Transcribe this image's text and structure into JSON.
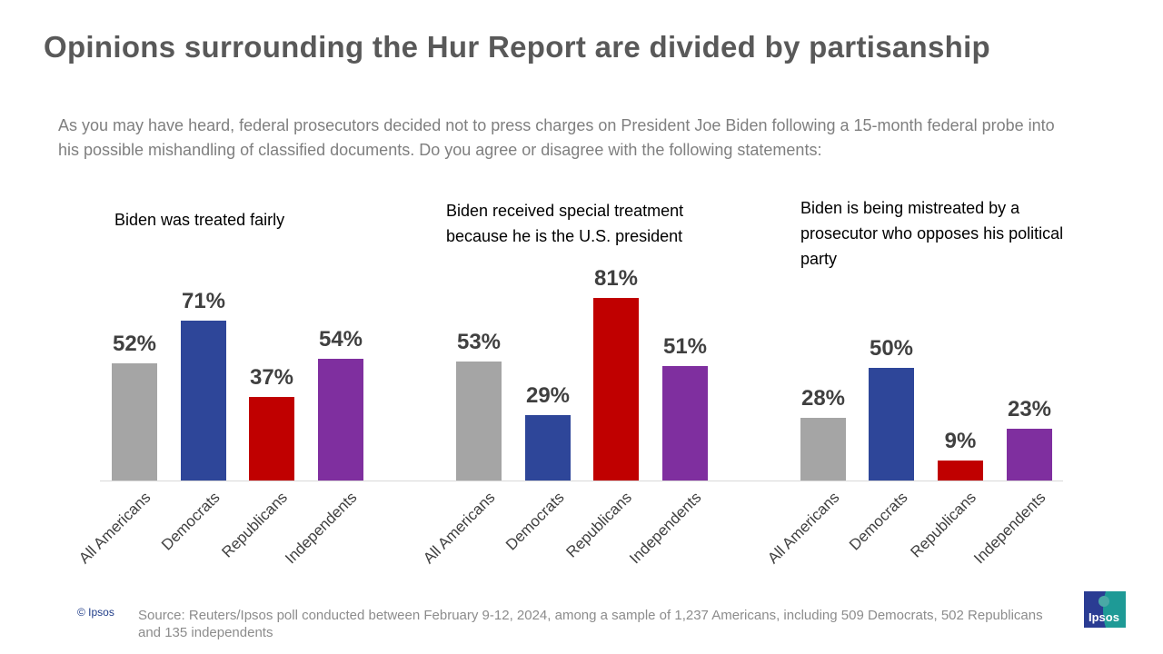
{
  "title": "Opinions surrounding the Hur Report are divided by partisanship",
  "subtitle": "As you may have heard, federal prosecutors decided not to press charges on President Joe Biden following a 15-month federal probe into his possible mishandling of classified documents. Do you agree or disagree with the following statements:",
  "chart_data": [
    {
      "type": "bar",
      "title": "Biden was treated fairly",
      "categories": [
        "All Americans",
        "Democrats",
        "Republicans",
        "Independents"
      ],
      "values": [
        52,
        71,
        37,
        54
      ],
      "value_labels": [
        "52%",
        "71%",
        "37%",
        "54%"
      ],
      "ylim": [
        0,
        100
      ]
    },
    {
      "type": "bar",
      "title": "Biden received special treatment because he is the U.S. president",
      "categories": [
        "All Americans",
        "Democrats",
        "Republicans",
        "Independents"
      ],
      "values": [
        53,
        29,
        81,
        51
      ],
      "value_labels": [
        "53%",
        "29%",
        "81%",
        "51%"
      ],
      "ylim": [
        0,
        100
      ]
    },
    {
      "type": "bar",
      "title": "Biden is being mistreated by a prosecutor who opposes his political party",
      "categories": [
        "All Americans",
        "Democrats",
        "Republicans",
        "Independents"
      ],
      "values": [
        28,
        50,
        9,
        23
      ],
      "value_labels": [
        "28%",
        "50%",
        "9%",
        "23%"
      ],
      "ylim": [
        0,
        100
      ]
    }
  ],
  "colors": {
    "All Americans": "#a5a5a5",
    "Democrats": "#2e4699",
    "Republicans": "#c00000",
    "Independents": "#7f2f9f"
  },
  "footer": {
    "copyright": "© Ipsos",
    "source": "Source: Reuters/Ipsos poll conducted between February 9-12, 2024, among a sample of 1,237 Americans, including 509 Democrats, 502 Republicans and 135 independents",
    "logo": "Ipsos"
  }
}
